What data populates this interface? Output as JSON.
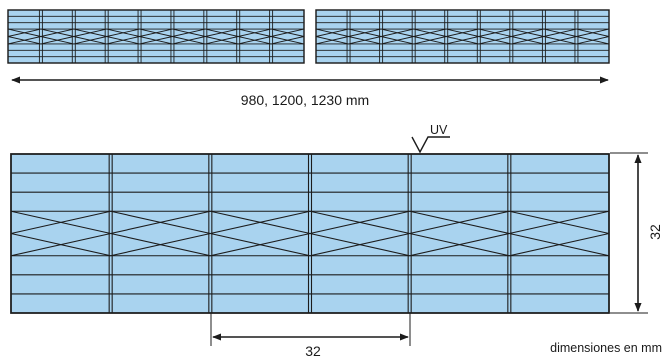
{
  "colors": {
    "panel_fill": "#a9d3ef",
    "stroke": "#1c1c1c",
    "background": "#ffffff"
  },
  "top_view": {
    "width_label": "980, 1200, 1230 mm"
  },
  "section_view": {
    "uv_label": "UV",
    "height_label": "32",
    "rib_spacing_label": "32",
    "units_note": "dimensiones en mm"
  }
}
